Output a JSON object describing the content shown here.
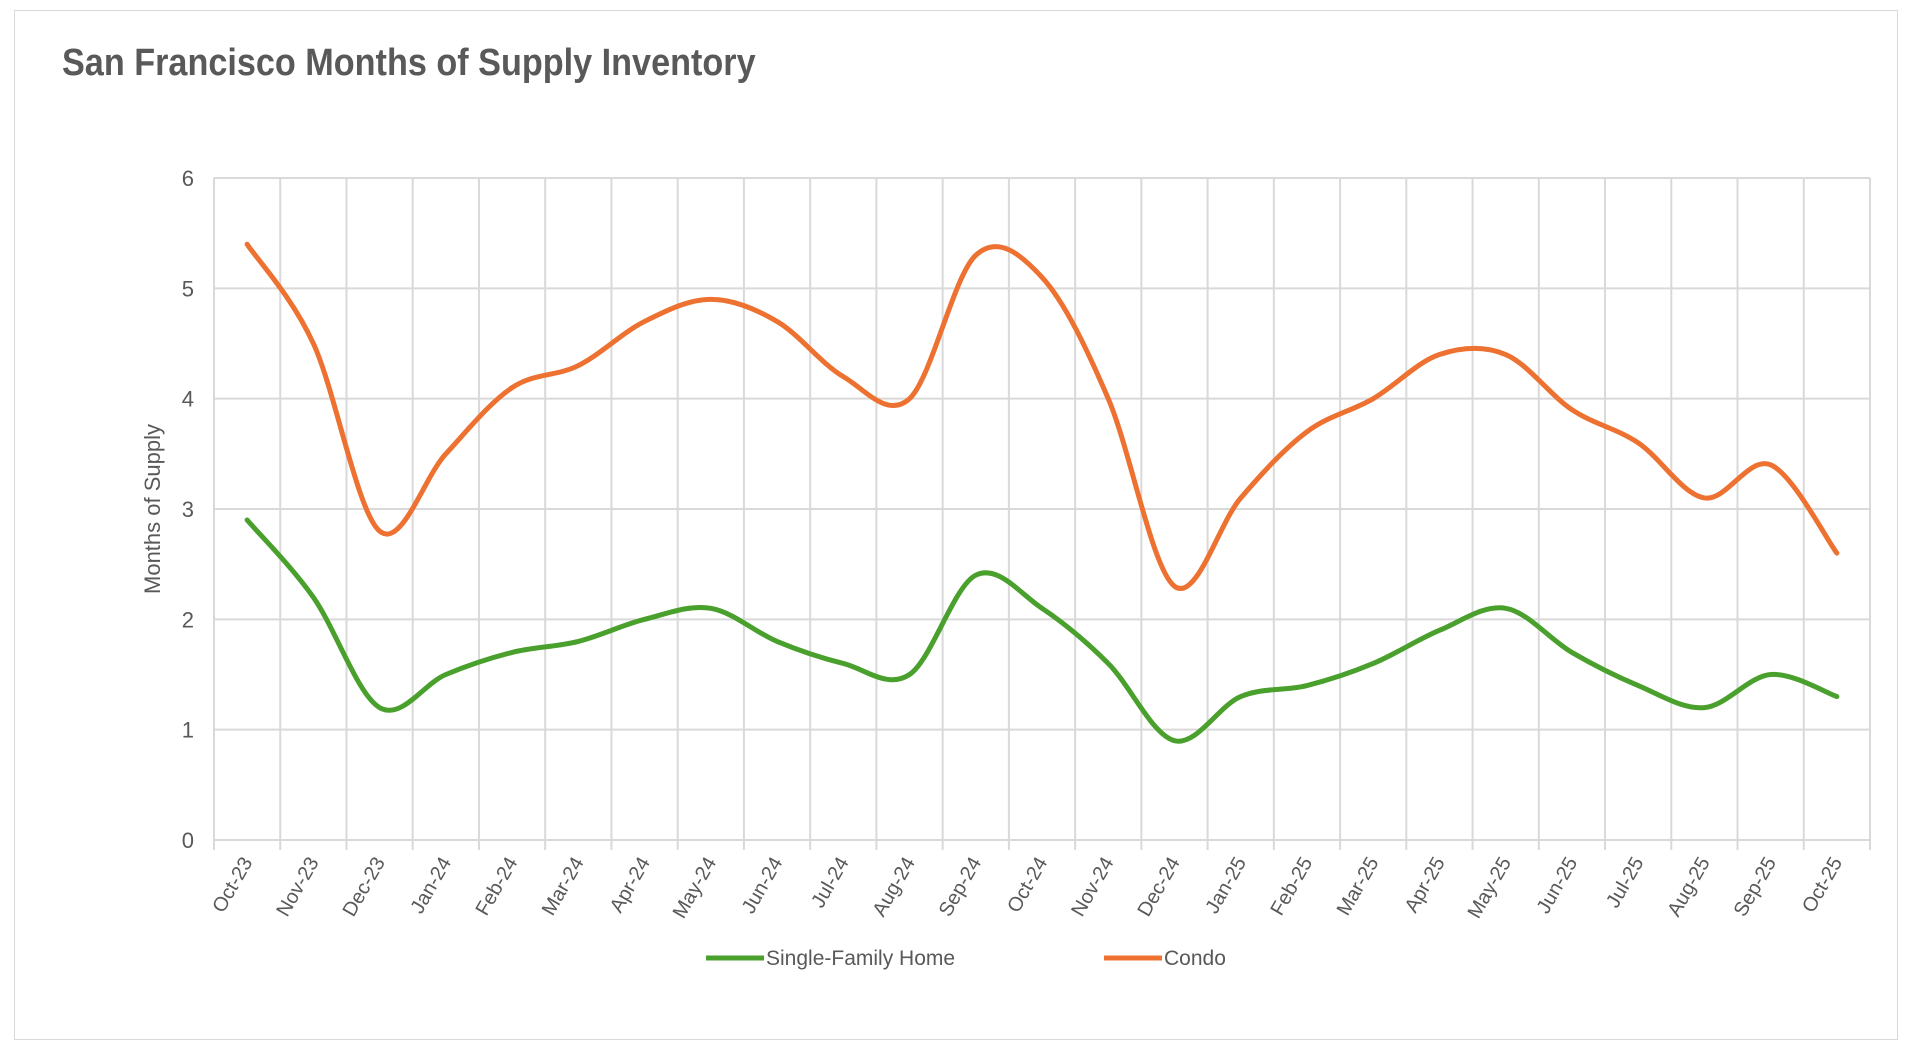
{
  "chart_data": {
    "type": "line",
    "title": "San Francisco Months of Supply Inventory",
    "xlabel": "",
    "ylabel": "Months of Supply",
    "ylim": [
      0,
      6
    ],
    "yticks": [
      "0",
      "1",
      "2",
      "3",
      "4",
      "5",
      "6"
    ],
    "grid": true,
    "smooth": true,
    "legend_position": "bottom",
    "categories": [
      "Oct-23",
      "Nov-23",
      "Dec-23",
      "Jan-24",
      "Feb-24",
      "Mar-24",
      "Apr-24",
      "May-24",
      "Jun-24",
      "Jul-24",
      "Aug-24",
      "Sep-24",
      "Oct-24",
      "Nov-24",
      "Dec-24",
      "Jan-25",
      "Feb-25",
      "Mar-25",
      "Apr-25",
      "May-25",
      "Jun-25",
      "Jul-25",
      "Aug-25",
      "Sep-25",
      "Oct-25"
    ],
    "series": [
      {
        "name": "Single-Family Home",
        "color": "#4aa02c",
        "values": [
          2.9,
          2.2,
          1.2,
          1.5,
          1.7,
          1.8,
          2.0,
          2.1,
          1.8,
          1.6,
          1.5,
          2.4,
          2.1,
          1.6,
          0.9,
          1.3,
          1.4,
          1.6,
          1.9,
          2.1,
          1.7,
          1.4,
          1.2,
          1.5,
          1.3
        ]
      },
      {
        "name": "Condo",
        "color": "#ed7130",
        "values": [
          5.4,
          4.5,
          2.8,
          3.5,
          4.1,
          4.3,
          4.7,
          4.9,
          4.7,
          4.2,
          4.0,
          5.3,
          5.1,
          4.0,
          2.3,
          3.1,
          3.7,
          4.0,
          4.4,
          4.4,
          3.9,
          3.6,
          3.1,
          3.4,
          2.6
        ]
      }
    ]
  }
}
